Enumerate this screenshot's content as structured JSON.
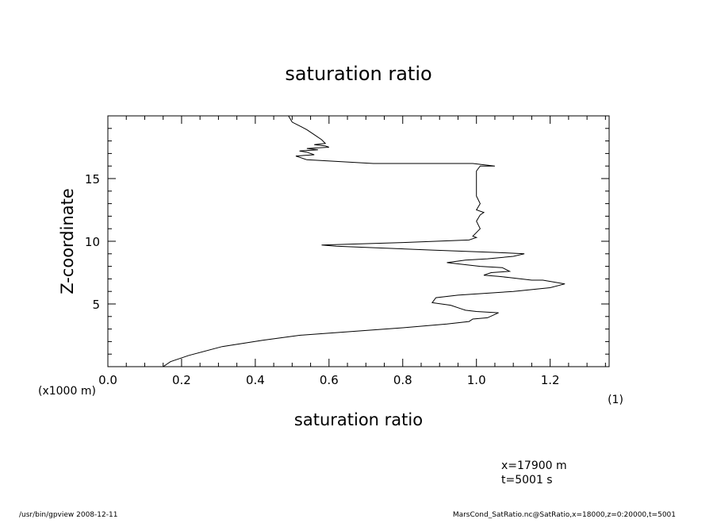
{
  "chart_data": {
    "type": "line",
    "title": "saturation ratio",
    "xlabel": "saturation ratio",
    "xunit": "(1)",
    "ylabel": "Z-coordinate",
    "yunit": "(x1000 m)",
    "xlim": [
      0,
      1.36
    ],
    "ylim": [
      0,
      20
    ],
    "xticks": [
      0.0,
      0.2,
      0.4,
      0.6,
      0.8,
      1.0,
      1.2
    ],
    "xtick_labels": [
      "0.0",
      "0.2",
      "0.4",
      "0.6",
      "0.8",
      "1.0",
      "1.2"
    ],
    "yticks": [
      5,
      10,
      15
    ],
    "ytick_labels": [
      "5",
      "10",
      "15"
    ],
    "grid": false,
    "legend": "none",
    "series": [
      {
        "color": "#000000",
        "points": [
          [
            0.15,
            0.0
          ],
          [
            0.17,
            0.4
          ],
          [
            0.22,
            0.9
          ],
          [
            0.31,
            1.6
          ],
          [
            0.42,
            2.1
          ],
          [
            0.52,
            2.5
          ],
          [
            0.66,
            2.8
          ],
          [
            0.8,
            3.1
          ],
          [
            0.92,
            3.4
          ],
          [
            0.98,
            3.6
          ],
          [
            0.99,
            3.8
          ],
          [
            1.03,
            3.9
          ],
          [
            1.06,
            4.3
          ],
          [
            1.0,
            4.4
          ],
          [
            0.97,
            4.5
          ],
          [
            0.96,
            4.6
          ],
          [
            0.93,
            4.9
          ],
          [
            0.88,
            5.1
          ],
          [
            0.89,
            5.5
          ],
          [
            0.95,
            5.7
          ],
          [
            1.1,
            6.0
          ],
          [
            1.2,
            6.3
          ],
          [
            1.24,
            6.6
          ],
          [
            1.18,
            6.9
          ],
          [
            1.15,
            6.9
          ],
          [
            1.09,
            7.1
          ],
          [
            1.06,
            7.2
          ],
          [
            1.02,
            7.3
          ],
          [
            1.04,
            7.5
          ],
          [
            1.09,
            7.6
          ],
          [
            1.07,
            7.9
          ],
          [
            1.01,
            8.0
          ],
          [
            0.92,
            8.3
          ],
          [
            0.97,
            8.5
          ],
          [
            1.03,
            8.6
          ],
          [
            1.1,
            8.8
          ],
          [
            1.13,
            9.0
          ],
          [
            1.06,
            9.1
          ],
          [
            0.88,
            9.3
          ],
          [
            0.62,
            9.6
          ],
          [
            0.58,
            9.7
          ],
          [
            0.8,
            9.9
          ],
          [
            0.98,
            10.1
          ],
          [
            1.0,
            10.3
          ],
          [
            0.99,
            10.4
          ],
          [
            1.01,
            11.0
          ],
          [
            1.0,
            11.6
          ],
          [
            1.01,
            12.1
          ],
          [
            1.02,
            12.3
          ],
          [
            1.0,
            12.5
          ],
          [
            1.01,
            13.0
          ],
          [
            1.0,
            13.6
          ],
          [
            1.0,
            14.3
          ],
          [
            1.0,
            15.0
          ],
          [
            1.0,
            15.6
          ],
          [
            1.01,
            16.0
          ],
          [
            1.05,
            16.0
          ],
          [
            0.99,
            16.2
          ],
          [
            0.72,
            16.2
          ],
          [
            0.54,
            16.5
          ],
          [
            0.51,
            16.8
          ],
          [
            0.56,
            16.9
          ],
          [
            0.54,
            17.1
          ],
          [
            0.52,
            17.2
          ],
          [
            0.57,
            17.3
          ],
          [
            0.54,
            17.4
          ],
          [
            0.6,
            17.5
          ],
          [
            0.59,
            17.6
          ],
          [
            0.56,
            17.7
          ],
          [
            0.59,
            17.8
          ],
          [
            0.58,
            18.1
          ],
          [
            0.56,
            18.5
          ],
          [
            0.54,
            18.9
          ],
          [
            0.52,
            19.2
          ],
          [
            0.5,
            19.5
          ],
          [
            0.49,
            20.0
          ]
        ]
      }
    ]
  },
  "annotations": {
    "x_position": "x=17900  m",
    "t_position": "t=5001  s"
  },
  "footer": {
    "left": "/usr/bin/gpview   2008-12-11",
    "right": "MarsCond_SatRatio.nc@SatRatio,x=18000,z=0:20000,t=5001"
  }
}
